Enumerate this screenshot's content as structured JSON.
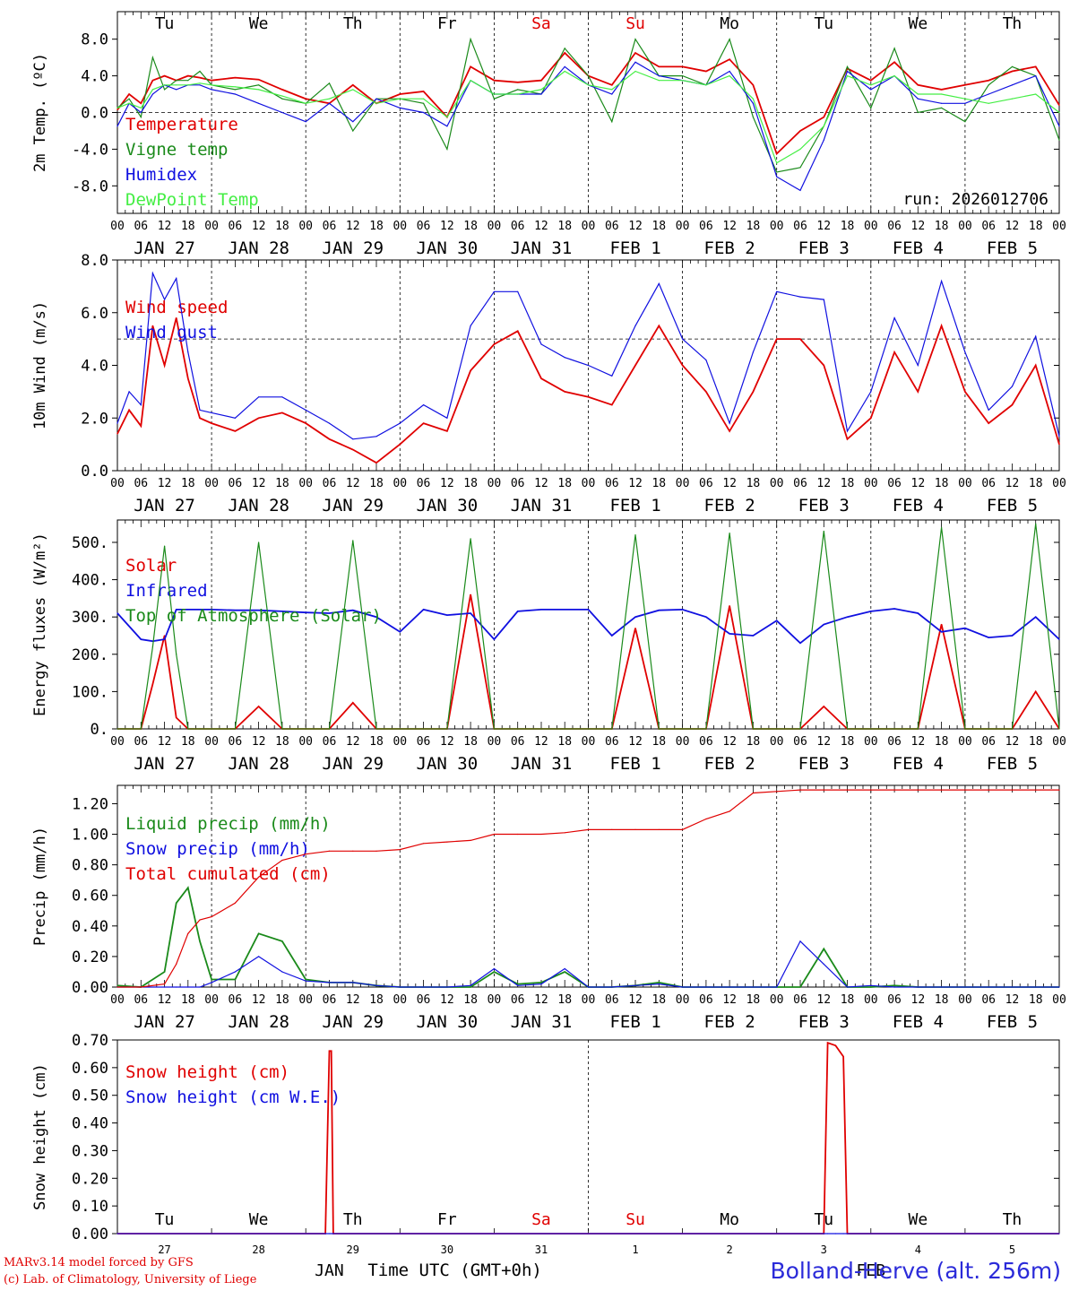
{
  "chart_data": [
    {
      "type": "line",
      "ylabel": "2m Temp. (ºC)",
      "ylim": [
        -11,
        11
      ],
      "yticks": [
        "8.0",
        "4.0",
        "0.0",
        "-4.0",
        "-8.0"
      ],
      "grid": "dashed vertical at 00 UTC, dashed horizontal at 0",
      "legend": "left",
      "annotation": "run: 2026012706",
      "top_days": [
        "Tu",
        "We",
        "Th",
        "Fr",
        "Sa",
        "Su",
        "Mo",
        "Tu",
        "We",
        "Th"
      ],
      "top_day_colors": [
        "#000000",
        "#000000",
        "#000000",
        "#000000",
        "#e00000",
        "#e00000",
        "#000000",
        "#000000",
        "#000000",
        "#000000"
      ],
      "x_hours": [
        0,
        3,
        6,
        9,
        12,
        15,
        18,
        21,
        24,
        30,
        36,
        42,
        48,
        54,
        60,
        66,
        72,
        78,
        84,
        90,
        96,
        102,
        108,
        114,
        120,
        126,
        132,
        138,
        144,
        150,
        156,
        162,
        168,
        174,
        180,
        186,
        192,
        198,
        204,
        210,
        216,
        222,
        228,
        234,
        240
      ],
      "series": [
        {
          "name": "Temperature",
          "color": "#e00000",
          "values": [
            0.3,
            2.0,
            1.0,
            3.5,
            4.0,
            3.5,
            4.0,
            3.8,
            3.5,
            3.8,
            3.6,
            2.5,
            1.5,
            1.0,
            3.0,
            1.0,
            2.0,
            2.3,
            -0.5,
            5.0,
            3.5,
            3.3,
            3.5,
            6.5,
            4.0,
            3.0,
            6.5,
            5.0,
            5.0,
            4.5,
            5.8,
            3.0,
            -4.5,
            -2.0,
            -0.5,
            4.8,
            3.5,
            5.5,
            3.0,
            2.5,
            3.0,
            3.5,
            4.5,
            5.0,
            0.8
          ]
        },
        {
          "name": "Vigne temp",
          "color": "#1a8a1a",
          "values": [
            0.5,
            1.5,
            -0.5,
            6.0,
            2.5,
            3.5,
            3.5,
            4.5,
            3.0,
            2.5,
            3.0,
            1.5,
            1.0,
            3.2,
            -2.0,
            1.5,
            1.5,
            1.0,
            -4.0,
            8.0,
            1.5,
            2.5,
            2.0,
            7.0,
            4.0,
            -1.0,
            8.0,
            4.0,
            4.0,
            3.0,
            8.0,
            -0.5,
            -6.5,
            -6.0,
            -1.5,
            5.0,
            0.5,
            7.0,
            0.0,
            0.5,
            -1.0,
            3.0,
            5.0,
            4.0,
            -3.0
          ]
        },
        {
          "name": "Humidex",
          "color": "#1010e0",
          "values": [
            -1.5,
            1.0,
            0.0,
            2.0,
            3.0,
            2.5,
            3.0,
            3.0,
            2.5,
            2.0,
            1.0,
            0.0,
            -1.0,
            1.0,
            -1.0,
            1.5,
            0.5,
            0.0,
            -1.5,
            3.5,
            2.0,
            2.0,
            2.0,
            5.0,
            3.0,
            2.0,
            5.5,
            4.0,
            3.5,
            3.0,
            4.5,
            1.0,
            -7.0,
            -8.5,
            -3.0,
            4.5,
            2.5,
            4.0,
            1.5,
            1.0,
            1.0,
            2.0,
            3.0,
            4.0,
            -1.5
          ]
        },
        {
          "name": "DewPoint Temp",
          "color": "#44ee44",
          "values": [
            0.5,
            1.0,
            0.5,
            2.5,
            3.0,
            3.0,
            3.0,
            3.2,
            3.0,
            2.8,
            2.5,
            1.8,
            1.0,
            1.5,
            2.5,
            1.0,
            1.5,
            1.5,
            -0.5,
            3.5,
            2.0,
            2.0,
            2.5,
            4.5,
            3.0,
            2.5,
            4.5,
            3.5,
            3.5,
            3.0,
            4.0,
            1.5,
            -5.5,
            -4.0,
            -1.5,
            4.0,
            3.0,
            4.0,
            2.0,
            2.0,
            1.5,
            1.0,
            1.5,
            2.0,
            0.0
          ]
        }
      ]
    },
    {
      "type": "line",
      "ylabel": "10m Wind (m/s)",
      "ylim": [
        0,
        8
      ],
      "yticks": [
        "8.0",
        "6.0",
        "4.0",
        "2.0",
        "0.0"
      ],
      "grid": "dashed vertical at 00 UTC, dashed horizontal at 5",
      "legend": "top-left",
      "x_hours": [
        0,
        3,
        6,
        9,
        12,
        15,
        18,
        21,
        24,
        30,
        36,
        42,
        48,
        54,
        60,
        66,
        72,
        78,
        84,
        90,
        96,
        102,
        108,
        114,
        120,
        126,
        132,
        138,
        144,
        150,
        156,
        162,
        168,
        174,
        180,
        186,
        192,
        198,
        204,
        210,
        216,
        222,
        228,
        234,
        240
      ],
      "series": [
        {
          "name": "Wind speed",
          "color": "#e00000",
          "values": [
            1.4,
            2.3,
            1.7,
            5.5,
            4.0,
            5.8,
            3.5,
            2.0,
            1.8,
            1.5,
            2.0,
            2.2,
            1.8,
            1.2,
            0.8,
            0.3,
            1.0,
            1.8,
            1.5,
            3.8,
            4.8,
            5.3,
            3.5,
            3.0,
            2.8,
            2.5,
            4.0,
            5.5,
            4.0,
            3.0,
            1.5,
            3.0,
            5.0,
            5.0,
            4.0,
            1.2,
            2.0,
            4.5,
            3.0,
            5.5,
            3.0,
            1.8,
            2.5,
            4.0,
            1.0
          ]
        },
        {
          "name": "Wind gust",
          "color": "#1010e0",
          "values": [
            1.8,
            3.0,
            2.5,
            7.5,
            6.5,
            7.3,
            4.5,
            2.3,
            2.2,
            2.0,
            2.8,
            2.8,
            2.3,
            1.8,
            1.2,
            1.3,
            1.8,
            2.5,
            2.0,
            5.5,
            6.8,
            6.8,
            4.8,
            4.3,
            4.0,
            3.6,
            5.5,
            7.1,
            5.0,
            4.2,
            1.8,
            4.5,
            6.8,
            6.6,
            6.5,
            1.5,
            3.0,
            5.8,
            4.0,
            7.2,
            4.5,
            2.3,
            3.2,
            5.1,
            1.3
          ]
        }
      ]
    },
    {
      "type": "line",
      "ylabel": "Energy fluxes (W/m²)",
      "ylim": [
        0,
        560
      ],
      "yticks": [
        "500.",
        "400.",
        "300.",
        "200.",
        "100.",
        "0."
      ],
      "grid": "dashed vertical at 00 UTC",
      "legend": "top-left",
      "x_hours": [
        0,
        6,
        9,
        12,
        15,
        18,
        21,
        24,
        30,
        36,
        42,
        48,
        54,
        60,
        66,
        72,
        78,
        84,
        90,
        96,
        102,
        108,
        114,
        120,
        126,
        132,
        138,
        144,
        150,
        156,
        162,
        168,
        174,
        180,
        186,
        192,
        198,
        204,
        210,
        216,
        222,
        228,
        234,
        240
      ],
      "series": [
        {
          "name": "Solar",
          "color": "#e00000",
          "values": [
            0,
            0,
            120,
            250,
            30,
            0,
            0,
            0,
            0,
            60,
            0,
            0,
            0,
            70,
            0,
            0,
            0,
            0,
            360,
            0,
            0,
            0,
            0,
            0,
            0,
            270,
            0,
            0,
            0,
            330,
            0,
            0,
            0,
            60,
            0,
            0,
            0,
            0,
            280,
            0,
            0,
            0,
            100,
            0
          ]
        },
        {
          "name": "Infrared",
          "color": "#1010e0",
          "values": [
            310,
            240,
            235,
            240,
            320,
            320,
            320,
            320,
            318,
            318,
            315,
            312,
            310,
            318,
            300,
            260,
            320,
            305,
            310,
            240,
            315,
            320,
            320,
            320,
            250,
            300,
            318,
            320,
            300,
            255,
            250,
            290,
            230,
            280,
            300,
            315,
            322,
            310,
            260,
            270,
            245,
            250,
            300,
            240
          ]
        },
        {
          "name": "Top of Atmosphere (Solar)",
          "color": "#1a8a1a",
          "values": [
            0,
            0,
            220,
            490,
            200,
            0,
            0,
            0,
            0,
            500,
            0,
            0,
            0,
            505,
            0,
            0,
            0,
            0,
            510,
            0,
            0,
            0,
            0,
            0,
            0,
            520,
            0,
            0,
            0,
            525,
            0,
            0,
            0,
            530,
            0,
            0,
            0,
            0,
            540,
            0,
            0,
            0,
            550,
            0
          ]
        }
      ]
    },
    {
      "type": "line",
      "ylabel": "Precip (mm/h)",
      "ylim": [
        0,
        1.32
      ],
      "yticks": [
        "1.20",
        "1.00",
        "0.80",
        "0.60",
        "0.40",
        "0.20",
        "0.00"
      ],
      "grid": "dashed vertical at 00 UTC",
      "legend": "top-left",
      "x_hours": [
        0,
        6,
        12,
        15,
        18,
        21,
        24,
        30,
        36,
        42,
        48,
        54,
        60,
        66,
        72,
        78,
        84,
        90,
        96,
        102,
        108,
        114,
        120,
        126,
        132,
        138,
        144,
        150,
        156,
        162,
        168,
        174,
        180,
        186,
        192,
        198,
        204,
        210,
        216,
        222,
        228,
        234,
        240
      ],
      "series": [
        {
          "name": "Liquid precip (mm/h)",
          "color": "#1a8a1a",
          "values": [
            0.01,
            0.0,
            0.1,
            0.55,
            0.65,
            0.3,
            0.05,
            0.05,
            0.35,
            0.3,
            0.05,
            0.03,
            0.03,
            0.01,
            0.0,
            0.0,
            0.0,
            0.0,
            0.1,
            0.02,
            0.03,
            0.1,
            0.0,
            0.0,
            0.01,
            0.03,
            0.0,
            0.0,
            0.0,
            0.0,
            0.0,
            0.0,
            0.25,
            0.0,
            0.0,
            0.01,
            0.0,
            0.0,
            0.0,
            0.0,
            0.0,
            0.0,
            0.0
          ]
        },
        {
          "name": "Snow precip (mm/h)",
          "color": "#1010e0",
          "values": [
            0.0,
            0.0,
            0.0,
            0.0,
            0.0,
            0.0,
            0.03,
            0.1,
            0.2,
            0.1,
            0.04,
            0.03,
            0.03,
            0.01,
            0.0,
            0.0,
            0.0,
            0.01,
            0.12,
            0.01,
            0.02,
            0.12,
            0.0,
            0.0,
            0.01,
            0.02,
            0.0,
            0.0,
            0.0,
            0.0,
            0.0,
            0.3,
            0.15,
            0.0,
            0.01,
            0.0,
            0.0,
            0.0,
            0.0,
            0.0,
            0.0,
            0.0,
            0.0
          ]
        },
        {
          "name": "Total cumulated (cm)",
          "color": "#e00000",
          "values": [
            0.0,
            0.0,
            0.02,
            0.15,
            0.35,
            0.44,
            0.46,
            0.55,
            0.72,
            0.83,
            0.87,
            0.89,
            0.89,
            0.89,
            0.9,
            0.94,
            0.95,
            0.96,
            1.0,
            1.0,
            1.0,
            1.01,
            1.03,
            1.03,
            1.03,
            1.03,
            1.03,
            1.1,
            1.15,
            1.27,
            1.28,
            1.29,
            1.29,
            1.29,
            1.29,
            1.29,
            1.29,
            1.29,
            1.29,
            1.29,
            1.29,
            1.29,
            1.29
          ]
        }
      ]
    },
    {
      "type": "line",
      "ylabel": "Snow height (cm)",
      "ylim": [
        0,
        0.7
      ],
      "yticks": [
        "0.70",
        "0.60",
        "0.50",
        "0.40",
        "0.30",
        "0.20",
        "0.10",
        "0.00"
      ],
      "grid": "dashed vertical at Sunday 00 UTC",
      "legend": "top-left",
      "x_hours": [
        0,
        53,
        54,
        54.5,
        55,
        180,
        181,
        183,
        185,
        186,
        240
      ],
      "series": [
        {
          "name": "Snow height (cm)",
          "color": "#e00000",
          "values": [
            0,
            0,
            0.66,
            0.66,
            0,
            0,
            0.69,
            0.68,
            0.64,
            0,
            0
          ]
        },
        {
          "name": "Snow height (cm W.E.)",
          "color": "#1010e0",
          "values": [
            0,
            0,
            0,
            0,
            0,
            0,
            0,
            0,
            0,
            0,
            0
          ]
        }
      ],
      "bottom_days": [
        "Tu",
        "We",
        "Th",
        "Fr",
        "Sa",
        "Su",
        "Mo",
        "Tu",
        "We",
        "Th"
      ],
      "bottom_day_colors": [
        "#000000",
        "#000000",
        "#000000",
        "#000000",
        "#e00000",
        "#e00000",
        "#000000",
        "#000000",
        "#000000",
        "#000000"
      ],
      "bottom_dates": [
        "27",
        "28",
        "29",
        "30",
        "31",
        "1",
        "2",
        "3",
        "4",
        "5"
      ],
      "month_labels": [
        "JAN",
        "FEB"
      ],
      "xlabel": "Time UTC (GMT+0h)"
    }
  ],
  "x_axis": {
    "hour_ticks": [
      "00",
      "06",
      "12",
      "18"
    ],
    "last_tick": "00",
    "date_labels": [
      "JAN 27",
      "JAN 28",
      "JAN 29",
      "JAN 30",
      "JAN 31",
      "FEB  1",
      "FEB  2",
      "FEB  3",
      "FEB  4",
      "FEB  5"
    ]
  },
  "footer": {
    "credit_line1": "MARv3.14 model forced by GFS",
    "credit_line2": "(c) Lab. of Climatology, University of Liege",
    "station": "Bolland-Herve (alt. 256m)"
  }
}
